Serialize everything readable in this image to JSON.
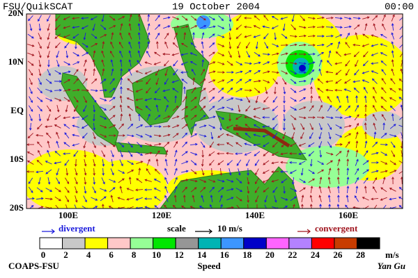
{
  "header": {
    "left": "FSU/QuikSCAT",
    "center": "19 October 2004",
    "right": "00:00"
  },
  "map": {
    "y_labels": [
      "20N",
      "10N",
      "EQ",
      "10S",
      "20S"
    ],
    "x_labels": [
      "100E",
      "120E",
      "140E",
      "160E"
    ]
  },
  "legend": {
    "divergent": "divergent",
    "scale": "scale",
    "scale_value": "10 m/s",
    "convergent": "convergent",
    "divergent_color": "#1a1adc",
    "convergent_color": "#a0141e"
  },
  "colorbar": {
    "ticks": [
      0,
      2,
      4,
      6,
      8,
      10,
      12,
      14,
      16,
      18,
      20,
      22,
      24,
      26,
      28
    ],
    "unit": "m/s",
    "label": "Speed",
    "colors": [
      "#ffffff",
      "#c8c8c8",
      "#ffff00",
      "#ffc8c8",
      "#96ff96",
      "#00e600",
      "#969696",
      "#00b4b4",
      "#3c96ff",
      "#0000c8",
      "#ff64ff",
      "#b482ff",
      "#ff0000",
      "#c83c00",
      "#000000"
    ]
  },
  "footer": {
    "left": "COAPS-FSU",
    "right": "Yan Gu"
  }
}
